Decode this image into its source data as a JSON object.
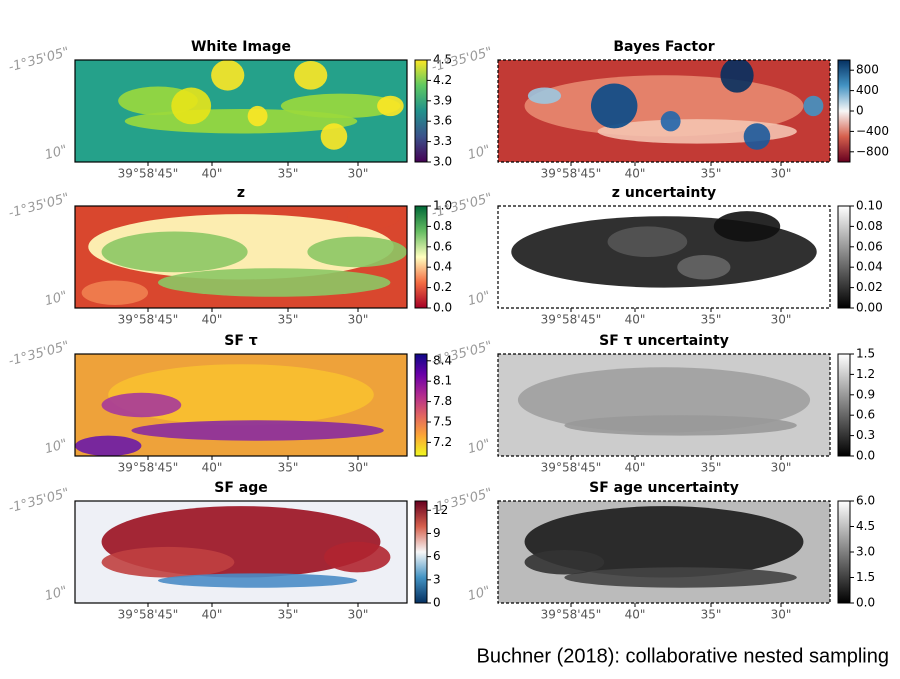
{
  "x_tick_labels": [
    "39°58'45\"",
    "40\"",
    "35\"",
    "30\""
  ],
  "y_tick_labels": [
    "-1°35'05\"",
    "10\""
  ],
  "panels": [
    {
      "title": "White Image",
      "colorbar": {
        "lim": [
          3.0,
          4.5
        ],
        "ticks": [
          {
            "value": 3,
            "label": "3.0"
          },
          3.3,
          3.6,
          3.9,
          4.2,
          4.5
        ]
      }
    },
    {
      "title": "Bayes Factor",
      "colorbar": {
        "lim": [
          -1000,
          1000
        ],
        "ticks": [
          800,
          400,
          0,
          {
            "value": -400,
            "label": "−400"
          },
          {
            "value": -800,
            "label": "−800"
          }
        ]
      }
    },
    {
      "title": "z",
      "colorbar": {
        "lim": [
          0,
          1
        ],
        "ticks": [
          {
            "value": 0,
            "label": "0.0"
          },
          0.2,
          0.4,
          0.6,
          0.8,
          {
            "value": 1,
            "label": "1.0"
          }
        ]
      }
    },
    {
      "title": "z uncertainty",
      "colorbar": {
        "lim": [
          0,
          0.1
        ],
        "ticks": [
          {
            "value": 0,
            "label": "0.00"
          },
          0.02,
          0.04,
          0.06,
          0.08,
          {
            "value": 0.1,
            "label": "0.10"
          }
        ]
      }
    },
    {
      "title": "SF τ",
      "colorbar": {
        "lim": [
          7.0,
          8.5
        ],
        "ticks": [
          7.2,
          7.5,
          7.8,
          8.1,
          8.4
        ]
      }
    },
    {
      "title": "SF τ uncertainty",
      "colorbar": {
        "lim": [
          0,
          1.5
        ],
        "ticks": [
          {
            "value": 0,
            "label": "0.0"
          },
          0.3,
          0.6,
          0.9,
          1.2,
          1.5
        ]
      }
    },
    {
      "title": "SF age",
      "colorbar": {
        "lim": [
          0,
          13.2
        ],
        "ticks": [
          0,
          3,
          6,
          9,
          12
        ]
      }
    },
    {
      "title": "SF age uncertainty",
      "colorbar": {
        "lim": [
          0,
          6
        ],
        "ticks": [
          {
            "value": 0,
            "label": "0.0"
          },
          1.5,
          {
            "value": 3,
            "label": "3.0"
          },
          4.5,
          {
            "value": 6,
            "label": "6.0"
          }
        ]
      }
    }
  ],
  "footer": "Buchner (2018): collaborative nested sampling"
}
